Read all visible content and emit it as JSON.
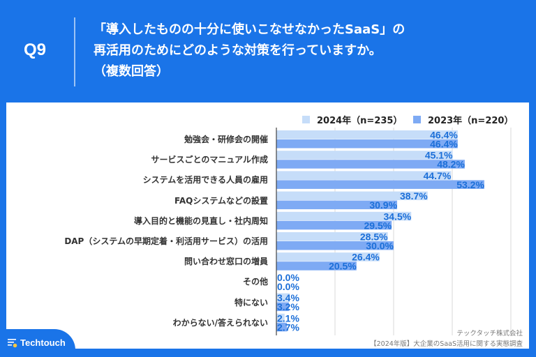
{
  "header": {
    "question_number": "Q9",
    "title_lines": [
      "「導入したものの十分に使いこなせなかったSaaS」の",
      "再活用のためにどのような対策を行っていますか。",
      "（複数回答）"
    ]
  },
  "brand": {
    "name": "Techtouch",
    "icon": "techtouch-logo-icon"
  },
  "credits": {
    "company": "テックタッチ株式会社",
    "survey": "【2024年版】大企業のSaaS活用に関する実態調査"
  },
  "colors": {
    "background": "#1a74e8",
    "series_2024": "#c6ddf9",
    "series_2023": "#7eaaf4",
    "label": "#1c6fd8"
  },
  "chart_data": {
    "type": "bar",
    "orientation": "horizontal",
    "title": "「導入したものの十分に使いこなせなかったSaaS」の再活用のためにどのような対策を行っていますか。（複数回答）",
    "xlabel": "",
    "ylabel": "",
    "xlim": [
      0,
      60
    ],
    "grid": true,
    "gridlines": [
      15,
      30,
      45,
      60
    ],
    "legend_position": "top-right",
    "categories": [
      "勉強会・研修会の開催",
      "サービスごとのマニュアル作成",
      "システムを活用できる人員の雇用",
      "FAQシステムなどの設置",
      "導入目的と機能の見直し・社内周知",
      "DAP（システムの早期定着・利活用サービス）の活用",
      "問い合わせ窓口の増員",
      "その他",
      "特にない",
      "わからない/答えられない"
    ],
    "series": [
      {
        "name": "2024年（n=235）",
        "values": [
          46.4,
          45.1,
          44.7,
          38.7,
          34.5,
          28.5,
          26.4,
          0.0,
          3.4,
          2.1
        ]
      },
      {
        "name": "2023年（n=220）",
        "values": [
          46.4,
          48.2,
          53.2,
          30.9,
          29.5,
          30.0,
          20.5,
          0.0,
          3.2,
          2.7
        ]
      }
    ]
  }
}
